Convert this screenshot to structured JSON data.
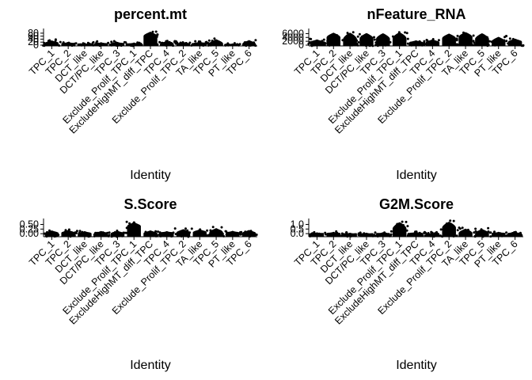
{
  "chart_data": [
    {
      "type": "violin",
      "title": "percent.mt",
      "xlabel": "Identity",
      "ylabel": "",
      "categories": [
        "TPC_1",
        "TPC_2",
        "DCT_like",
        "DCT/PC_like",
        "TPC_3",
        "Exclude_Prolif_TPC_1",
        "ExcludeHighMT_diff_TPC",
        "TPC_4",
        "Exclude_Prolif_TPC_2",
        "TA_like",
        "TPC_5",
        "PT_like",
        "TPC_6"
      ],
      "yticks": [
        0,
        20,
        40,
        60,
        80
      ],
      "ytick_labels": [
        "0",
        "20",
        "40",
        "60",
        "80"
      ],
      "ylim": [
        0,
        90
      ],
      "median": [
        13,
        9,
        6,
        8,
        9,
        7,
        60,
        8,
        7,
        9,
        10,
        6,
        6
      ],
      "max": [
        32,
        22,
        14,
        20,
        22,
        18,
        90,
        28,
        22,
        24,
        40,
        12,
        34
      ]
    },
    {
      "type": "violin",
      "title": "nFeature_RNA",
      "xlabel": "Identity",
      "ylabel": "",
      "categories": [
        "TPC_1",
        "TPC_2",
        "DCT_like",
        "DCT/PC_like",
        "TPC_3",
        "Exclude_Prolif_TPC_1",
        "ExcludeHighMT_diff_TPC",
        "TPC_4",
        "Exclude_Prolif_TPC_2",
        "TA_like",
        "TPC_5",
        "PT_like",
        "TPC_6"
      ],
      "yticks": [
        0,
        2000,
        4000,
        6000
      ],
      "ytick_labels": [
        "0",
        "2000",
        "4000",
        "6000"
      ],
      "ylim": [
        0,
        7000
      ],
      "median": [
        1500,
        4000,
        3200,
        3500,
        3300,
        3600,
        1200,
        1400,
        3500,
        4200,
        3300,
        1800,
        1700
      ],
      "max": [
        3000,
        6500,
        6500,
        6300,
        6200,
        6700,
        2500,
        3000,
        6000,
        6800,
        6200,
        4300,
        3400
      ]
    },
    {
      "type": "violin",
      "title": "S.Score",
      "xlabel": "Identity",
      "ylabel": "",
      "categories": [
        "TPC_1",
        "TPC_2",
        "DCT_like",
        "DCT/PC_like",
        "TPC_3",
        "Exclude_Prolif_TPC_1",
        "ExcludeHighMT_diff_TPC",
        "TPC_4",
        "Exclude_Prolif_TPC_2",
        "TA_like",
        "TPC_5",
        "PT_like",
        "TPC_6"
      ],
      "yticks": [
        0.0,
        0.25,
        0.5
      ],
      "ytick_labels": [
        "0.00",
        "0.25",
        "0.50"
      ],
      "ylim": [
        -0.12,
        0.65
      ],
      "median": [
        0.02,
        0.03,
        0.0,
        0.01,
        0.0,
        0.4,
        0.01,
        0.03,
        0.05,
        0.06,
        0.06,
        0.04,
        0.02
      ],
      "max": [
        0.18,
        0.2,
        0.14,
        0.15,
        0.16,
        0.62,
        0.18,
        0.14,
        0.25,
        0.24,
        0.3,
        0.16,
        0.2
      ]
    },
    {
      "type": "violin",
      "title": "G2M.Score",
      "xlabel": "Identity",
      "ylabel": "",
      "categories": [
        "TPC_1",
        "TPC_2",
        "DCT_like",
        "DCT/PC_like",
        "TPC_3",
        "Exclude_Prolif_TPC_1",
        "ExcludeHighMT_diff_TPC",
        "TPC_4",
        "Exclude_Prolif_TPC_2",
        "TA_like",
        "TPC_5",
        "PT_like",
        "TPC_6"
      ],
      "yticks": [
        0.0,
        0.5,
        1.0
      ],
      "ytick_labels": [
        "0.0",
        "0.5",
        "1.0"
      ],
      "ylim": [
        -0.25,
        1.3
      ],
      "median": [
        0.0,
        0.0,
        -0.02,
        -0.02,
        -0.01,
        0.55,
        0.0,
        -0.02,
        0.65,
        0.05,
        0.02,
        0.0,
        -0.02
      ],
      "max": [
        0.15,
        0.2,
        0.1,
        0.1,
        0.15,
        1.25,
        0.2,
        0.1,
        1.3,
        0.55,
        0.5,
        0.2,
        0.2
      ]
    }
  ]
}
